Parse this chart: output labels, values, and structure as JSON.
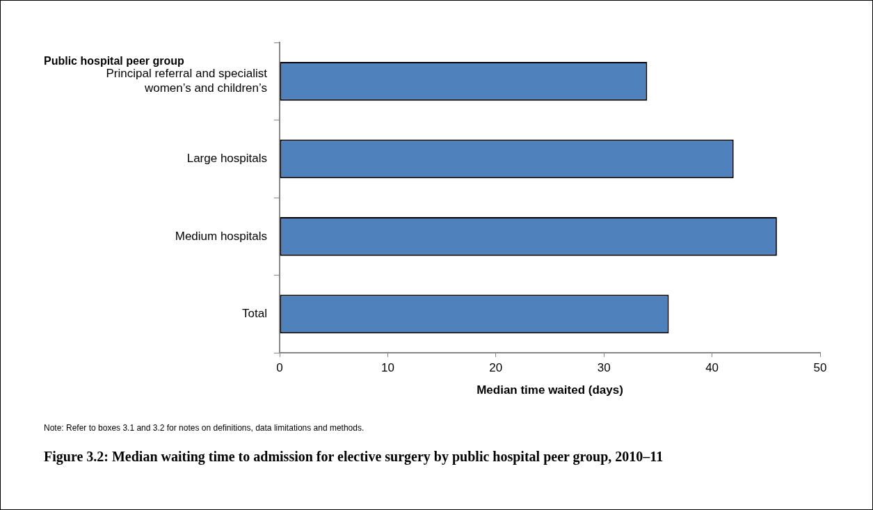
{
  "chart_data": {
    "type": "bar",
    "orientation": "horizontal",
    "title": "Figure 3.2: Median waiting time to admission for elective surgery by public hospital peer group, 2010–11",
    "ylabel": "Public hospital peer group",
    "xlabel": "Median time waited (days)",
    "annotations": [
      "Note: Refer to boxes 3.1 and 3.2 for notes on definitions, data limitations and methods."
    ],
    "categories": [
      "Principal referral and specialist women’s and children’s",
      "Large hospitals",
      "Medium hospitals",
      "Total"
    ],
    "values": [
      34,
      42,
      46,
      36
    ],
    "color": "#4f81bd",
    "xlim": [
      0,
      50
    ],
    "xticks": [
      0,
      10,
      20,
      30,
      40,
      50
    ],
    "grid": false,
    "legend": false
  }
}
